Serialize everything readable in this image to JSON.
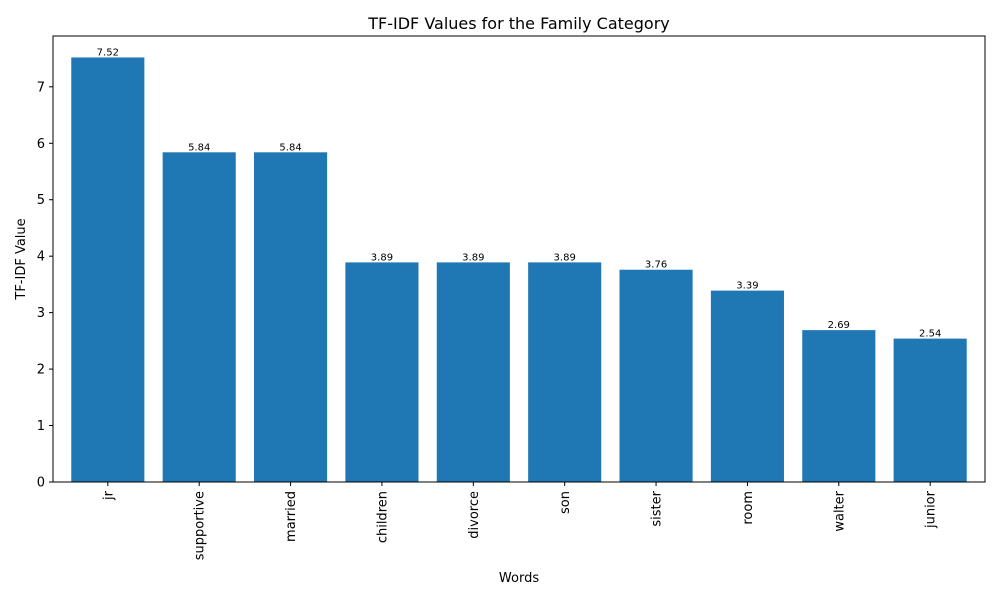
{
  "chart_data": {
    "type": "bar",
    "title": "TF-IDF Values for the Family Category",
    "xlabel": "Words",
    "ylabel": "TF-IDF Value",
    "categories": [
      "jr",
      "supportive",
      "married",
      "children",
      "divorce",
      "son",
      "sister",
      "room",
      "walter",
      "junior"
    ],
    "values": [
      7.52,
      5.84,
      5.84,
      3.89,
      3.89,
      3.89,
      3.76,
      3.39,
      2.69,
      2.54
    ],
    "value_labels": [
      "7.52",
      "5.84",
      "5.84",
      "3.89",
      "3.89",
      "3.89",
      "3.76",
      "3.39",
      "2.69",
      "2.54"
    ],
    "ylim": [
      0,
      7.9
    ],
    "yticks": [
      0,
      1,
      2,
      3,
      4,
      5,
      6,
      7
    ],
    "grid": false,
    "legend": "none",
    "bar_color": "#1f77b4"
  }
}
